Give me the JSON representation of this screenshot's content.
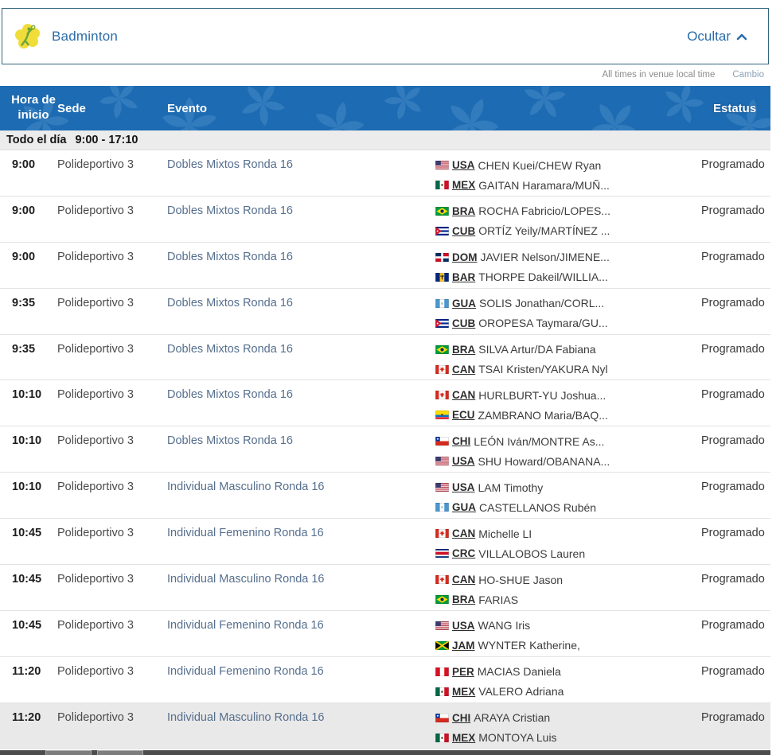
{
  "panel": {
    "sport": "Badminton",
    "toggle_label": "Ocultar"
  },
  "note": {
    "text": "All times in venue local time",
    "link": "Cambio"
  },
  "table": {
    "columns": {
      "time": "Hora de inicio",
      "venue": "Sede",
      "event": "Evento",
      "status": "Estatus"
    },
    "day_header": {
      "label": "Todo el día",
      "range": "9:00 - 17:10"
    }
  },
  "rows": [
    {
      "time": "9:00",
      "venue": "Polideportivo 3",
      "event": "Dobles Mixtos Ronda 16",
      "status": "Programado",
      "highlighted": false,
      "teams": [
        {
          "noc": "USA",
          "players": "CHEN Kuei/CHEW Ryan"
        },
        {
          "noc": "MEX",
          "players": "GAITAN Haramara/MUÑ..."
        }
      ]
    },
    {
      "time": "9:00",
      "venue": "Polideportivo 3",
      "event": "Dobles Mixtos Ronda 16",
      "status": "Programado",
      "highlighted": false,
      "teams": [
        {
          "noc": "BRA",
          "players": "ROCHA Fabricio/LOPES..."
        },
        {
          "noc": "CUB",
          "players": "ORTÍZ Yeily/MARTÍNEZ ..."
        }
      ]
    },
    {
      "time": "9:00",
      "venue": "Polideportivo 3",
      "event": "Dobles Mixtos Ronda 16",
      "status": "Programado",
      "highlighted": false,
      "teams": [
        {
          "noc": "DOM",
          "players": "JAVIER Nelson/JIMENE..."
        },
        {
          "noc": "BAR",
          "players": "THORPE Dakeil/WILLIA..."
        }
      ]
    },
    {
      "time": "9:35",
      "venue": "Polideportivo 3",
      "event": "Dobles Mixtos Ronda 16",
      "status": "Programado",
      "highlighted": false,
      "teams": [
        {
          "noc": "GUA",
          "players": "SOLIS Jonathan/CORL..."
        },
        {
          "noc": "CUB",
          "players": "OROPESA Taymara/GU..."
        }
      ]
    },
    {
      "time": "9:35",
      "venue": "Polideportivo 3",
      "event": "Dobles Mixtos Ronda 16",
      "status": "Programado",
      "highlighted": false,
      "teams": [
        {
          "noc": "BRA",
          "players": "SILVA Artur/DA Fabiana"
        },
        {
          "noc": "CAN",
          "players": "TSAI Kristen/YAKURA Nyl"
        }
      ]
    },
    {
      "time": "10:10",
      "venue": "Polideportivo 3",
      "event": "Dobles Mixtos Ronda 16",
      "status": "Programado",
      "highlighted": false,
      "teams": [
        {
          "noc": "CAN",
          "players": "HURLBURT-YU Joshua..."
        },
        {
          "noc": "ECU",
          "players": "ZAMBRANO Maria/BAQ..."
        }
      ]
    },
    {
      "time": "10:10",
      "venue": "Polideportivo 3",
      "event": "Dobles Mixtos Ronda 16",
      "status": "Programado",
      "highlighted": false,
      "teams": [
        {
          "noc": "CHI",
          "players": "LEÓN Iván/MONTRE As..."
        },
        {
          "noc": "USA",
          "players": "SHU Howard/OBANANA..."
        }
      ]
    },
    {
      "time": "10:10",
      "venue": "Polideportivo 3",
      "event": "Individual Masculino Ronda 16",
      "status": "Programado",
      "highlighted": false,
      "teams": [
        {
          "noc": "USA",
          "players": "LAM Timothy"
        },
        {
          "noc": "GUA",
          "players": "CASTELLANOS Rubén"
        }
      ]
    },
    {
      "time": "10:45",
      "venue": "Polideportivo 3",
      "event": "Individual Femenino Ronda 16",
      "status": "Programado",
      "highlighted": false,
      "teams": [
        {
          "noc": "CAN",
          "players": "Michelle LI"
        },
        {
          "noc": "CRC",
          "players": "VILLALOBOS Lauren"
        }
      ]
    },
    {
      "time": "10:45",
      "venue": "Polideportivo 3",
      "event": "Individual Masculino Ronda 16",
      "status": "Programado",
      "highlighted": false,
      "teams": [
        {
          "noc": "CAN",
          "players": "HO-SHUE Jason"
        },
        {
          "noc": "BRA",
          "players": "FARIAS"
        }
      ]
    },
    {
      "time": "10:45",
      "venue": "Polideportivo 3",
      "event": "Individual Femenino Ronda 16",
      "status": "Programado",
      "highlighted": false,
      "teams": [
        {
          "noc": "USA",
          "players": "WANG Iris"
        },
        {
          "noc": "JAM",
          "players": "WYNTER Katherine,"
        }
      ]
    },
    {
      "time": "11:20",
      "venue": "Polideportivo 3",
      "event": "Individual Femenino Ronda 16",
      "status": "Programado",
      "highlighted": false,
      "teams": [
        {
          "noc": "PER",
          "players": "MACIAS Daniela"
        },
        {
          "noc": "MEX",
          "players": "VALERO Adriana"
        }
      ]
    },
    {
      "time": "11:20",
      "venue": "Polideportivo 3",
      "event": "Individual Masculino Ronda 16",
      "status": "Programado",
      "highlighted": true,
      "teams": [
        {
          "noc": "CHI",
          "players": "ARAYA Cristian"
        },
        {
          "noc": "MEX",
          "players": "MONTOYA Luis"
        }
      ]
    }
  ],
  "colors": {
    "header_blue": "#1d6bb2",
    "pattern_flower": "#4f93cd",
    "link_blue": "#2b6da9",
    "event_link": "#566f8e",
    "day_bar_bg": "#ececec",
    "row_highlight": "#e9e9e9",
    "status_text": "#3a3a3a",
    "note_gray": "#8c8c8c",
    "icon_yellow": "#f0dd3a",
    "icon_green": "#6fa43a"
  }
}
